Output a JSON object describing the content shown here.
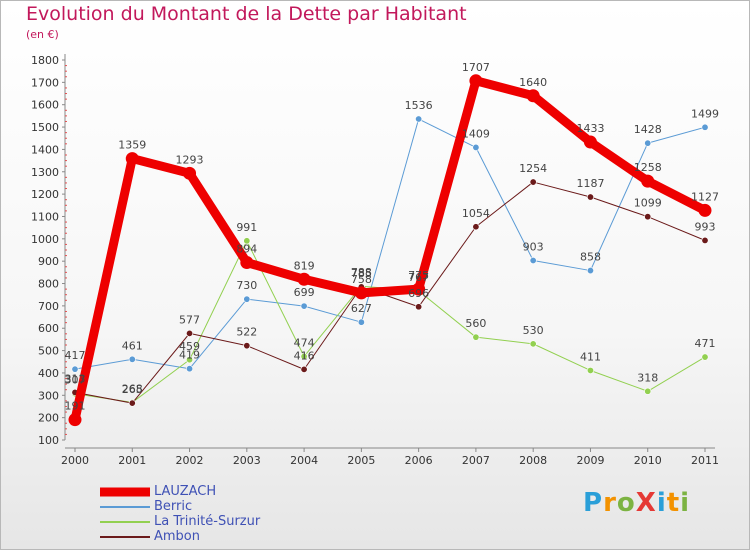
{
  "title": "Evolution du Montant de la Dette par Habitant",
  "subtitle": "(en €)",
  "logo": {
    "text": "ProXiti"
  },
  "chart_data": {
    "type": "line",
    "x": [
      "2000",
      "2001",
      "2002",
      "2003",
      "2004",
      "2005",
      "2006",
      "2007",
      "2008",
      "2009",
      "2010",
      "2011"
    ],
    "ylim": [
      100,
      1800
    ],
    "yticks": [
      100,
      200,
      300,
      400,
      500,
      600,
      700,
      800,
      900,
      1000,
      1100,
      1200,
      1300,
      1400,
      1500,
      1600,
      1700,
      1800
    ],
    "grid": false,
    "legend_position": "bottom-left",
    "series": [
      {
        "name": "LAUZACH",
        "color": "#ee0000",
        "width": 9,
        "values": [
          191,
          1359,
          1293,
          894,
          819,
          758,
          775,
          1707,
          1640,
          1433,
          1258,
          1127
        ],
        "labels": [
          "191",
          "1359",
          "1293",
          "894",
          "819",
          "758",
          "775",
          "1707",
          "1640",
          "1433",
          "1258",
          "1127"
        ]
      },
      {
        "name": "Berric",
        "color": "#5b9bd5",
        "width": 1,
        "values": [
          417,
          461,
          419,
          730,
          699,
          627,
          1536,
          1409,
          903,
          858,
          1428,
          1499
        ],
        "labels": [
          "417",
          "461",
          "419",
          "730",
          "699",
          "627",
          "1536",
          "1409",
          "903",
          "858",
          "1428",
          "1499"
        ]
      },
      {
        "name": "La Trinité-Surzur",
        "color": "#92d050",
        "width": 1,
        "values": [
          307,
          268,
          459,
          991,
          474,
          788,
          767,
          560,
          530,
          411,
          318,
          471
        ],
        "labels": [
          "307",
          "268",
          "459",
          "991",
          "474",
          "788",
          "767",
          "560",
          "530",
          "411",
          "318",
          "471"
        ]
      },
      {
        "name": "Ambon",
        "color": "#6b1a1a",
        "width": 1,
        "values": [
          313,
          265,
          577,
          522,
          416,
          785,
          696,
          1054,
          1254,
          1187,
          1099,
          993
        ],
        "labels": [
          "313",
          "265",
          "577",
          "522",
          "416",
          "785",
          "696",
          "1054",
          "1254",
          "1187",
          "1099",
          "993"
        ]
      }
    ]
  }
}
